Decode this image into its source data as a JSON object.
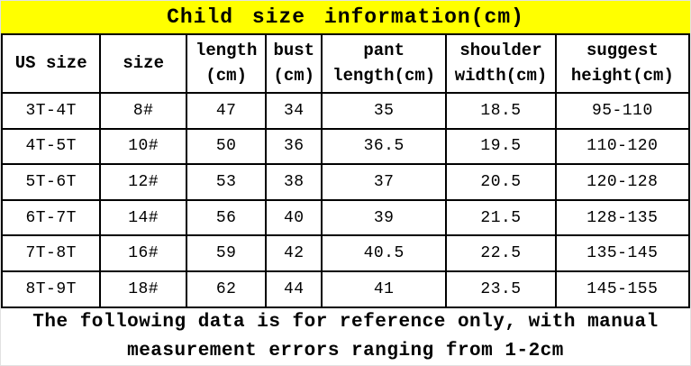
{
  "title": "Child size information(cm)",
  "colors": {
    "title_background": "#ffff00",
    "border": "#000000",
    "text": "#000000",
    "page_background": "#ffffff"
  },
  "table": {
    "columns": [
      {
        "id": "us_size",
        "label": "US size",
        "width_pct": 14.34
      },
      {
        "id": "size",
        "label": "size",
        "width_pct": 12.52
      },
      {
        "id": "length",
        "label": "length\n(cm)",
        "width_pct": 11.6
      },
      {
        "id": "bust",
        "label": "bust\n(cm)",
        "width_pct": 8.08
      },
      {
        "id": "pant_length",
        "label": "pant\nlength(cm)",
        "width_pct": 18.12
      },
      {
        "id": "shoulder_width",
        "label": "shoulder\nwidth(cm)",
        "width_pct": 15.91
      },
      {
        "id": "suggest_height",
        "label": "suggest\nheight(cm)",
        "width_pct": 19.43
      }
    ],
    "rows": [
      [
        "3T-4T",
        "8#",
        "47",
        "34",
        "35",
        "18.5",
        "95-110"
      ],
      [
        "4T-5T",
        "10#",
        "50",
        "36",
        "36.5",
        "19.5",
        "110-120"
      ],
      [
        "5T-6T",
        "12#",
        "53",
        "38",
        "37",
        "20.5",
        "120-128"
      ],
      [
        "6T-7T",
        "14#",
        "56",
        "40",
        "39",
        "21.5",
        "128-135"
      ],
      [
        "7T-8T",
        "16#",
        "59",
        "42",
        "40.5",
        "22.5",
        "135-145"
      ],
      [
        "8T-9T",
        "18#",
        "62",
        "44",
        "41",
        "23.5",
        "145-155"
      ]
    ]
  },
  "footer_note": "The following data is for reference only, with manual\nmeasurement errors ranging from 1-2cm"
}
